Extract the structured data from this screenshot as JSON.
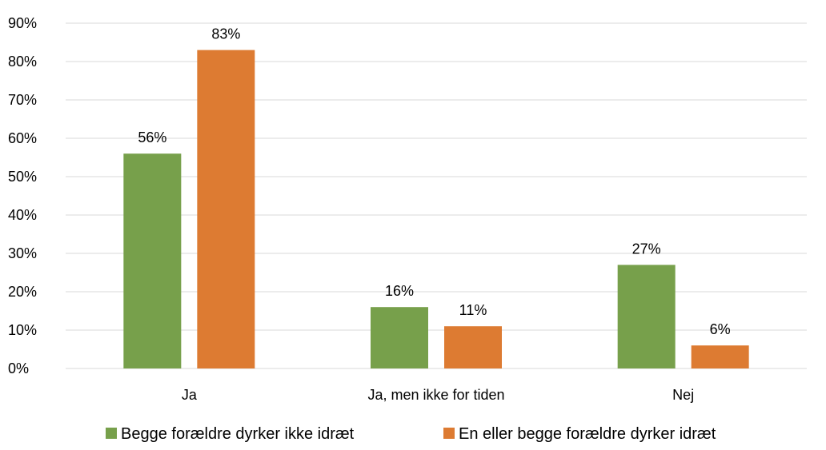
{
  "chart_data": {
    "type": "bar",
    "categories": [
      "Ja",
      "Ja, men ikke for tiden",
      "Nej"
    ],
    "series": [
      {
        "name": "Begge forældre dyrker ikke idræt",
        "values": [
          56,
          16,
          27
        ],
        "color": "#77a04b"
      },
      {
        "name": "En eller begge forældre dyrker idræt",
        "values": [
          83,
          11,
          6
        ],
        "color": "#dd7b32"
      }
    ],
    "data_labels": [
      [
        "56%",
        "16%",
        "27%"
      ],
      [
        "83%",
        "11%",
        "6%"
      ]
    ],
    "y_ticks": [
      "0%",
      "10%",
      "20%",
      "30%",
      "40%",
      "50%",
      "60%",
      "70%",
      "80%",
      "90%"
    ],
    "ylim": [
      0,
      90
    ],
    "y_unit": "%",
    "grid": true,
    "legend_position": "bottom",
    "gridline_color": "#d9d9d9"
  }
}
